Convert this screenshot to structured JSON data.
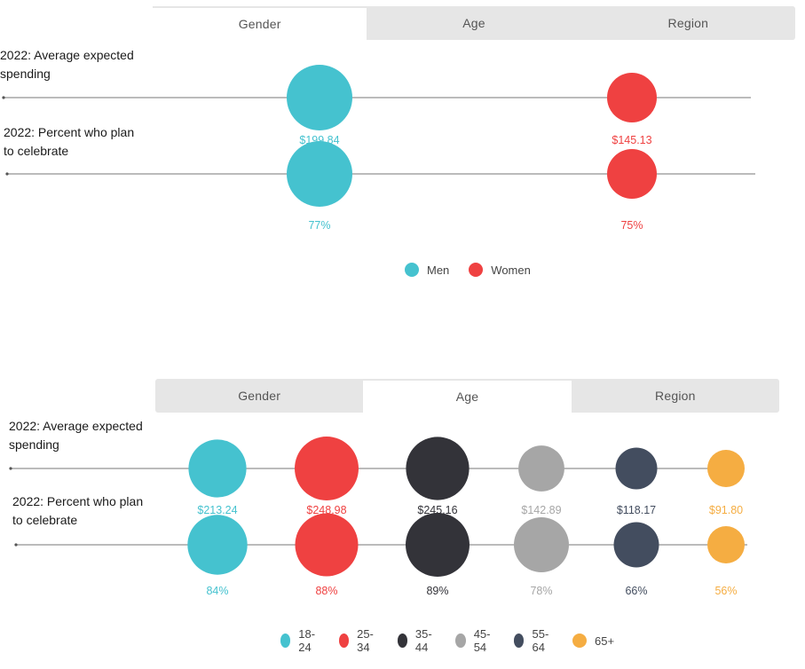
{
  "chart_data": [
    {
      "type": "bubble",
      "tabs": [
        "Gender",
        "Age",
        "Region"
      ],
      "active_tab": 0,
      "rows": [
        "2022: Average expected spending",
        "2022: Percent who plan to celebrate"
      ],
      "categories": [
        "Men",
        "Women"
      ],
      "colors": [
        "#45c2cf",
        "#ef4141"
      ],
      "series": [
        {
          "name": "2022: Average expected spending",
          "values": [
            199.84,
            145.13
          ],
          "labels": [
            "$199.84",
            "$145.13"
          ]
        },
        {
          "name": "2022: Percent who plan to celebrate",
          "values": [
            77,
            75
          ],
          "labels": [
            "77%",
            "75%"
          ]
        }
      ],
      "legend": [
        "Men",
        "Women"
      ]
    },
    {
      "type": "bubble",
      "tabs": [
        "Gender",
        "Age",
        "Region"
      ],
      "active_tab": 1,
      "rows": [
        "2022: Average expected spending",
        "2022: Percent who plan to celebrate"
      ],
      "categories": [
        "18-24",
        "25-34",
        "35-44",
        "45-54",
        "55-64",
        "65+"
      ],
      "colors": [
        "#45c2cf",
        "#ef4141",
        "#333339",
        "#a6a6a6",
        "#434d5f",
        "#f5ad42"
      ],
      "series": [
        {
          "name": "2022: Average expected spending",
          "values": [
            213.24,
            248.98,
            245.16,
            142.89,
            118.17,
            91.8
          ],
          "labels": [
            "$213.24",
            "$248.98",
            "$245.16",
            "$142.89",
            "$118.17",
            "$91.80"
          ]
        },
        {
          "name": "2022: Percent who plan to celebrate",
          "values": [
            84,
            88,
            89,
            78,
            66,
            56
          ],
          "labels": [
            "84%",
            "88%",
            "89%",
            "78%",
            "66%",
            "56%"
          ]
        }
      ],
      "legend": [
        "18-24",
        "25-34",
        "35-44",
        "45-54",
        "55-64",
        "65+"
      ]
    }
  ]
}
